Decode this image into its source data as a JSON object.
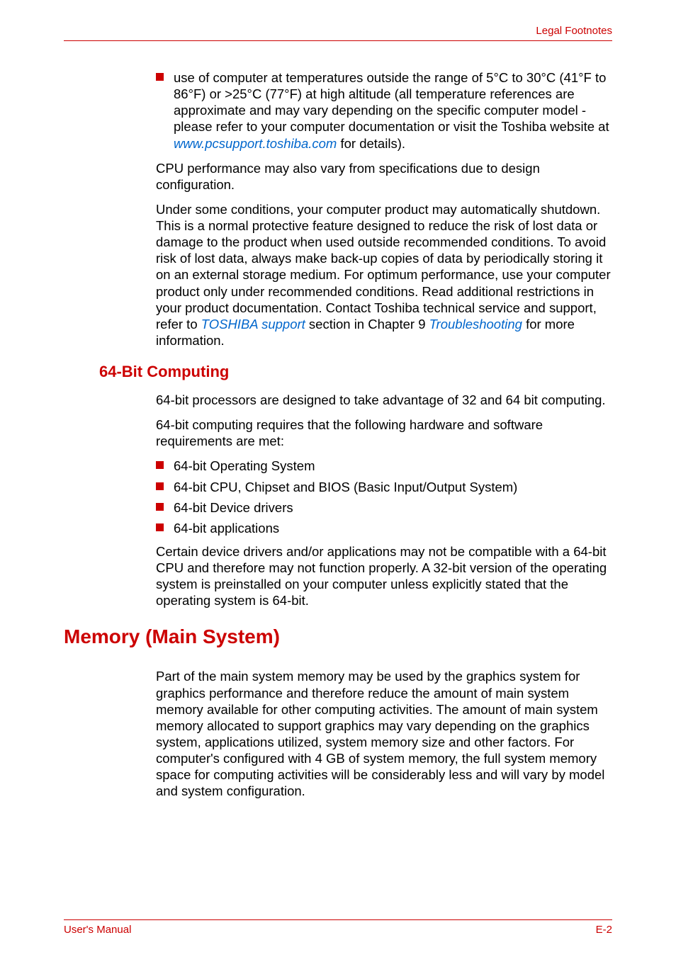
{
  "header": {
    "section_title": "Legal Footnotes"
  },
  "intro_bullet": {
    "text_before": "use of computer at temperatures outside the range of 5°C to 30°C (41°F to 86°F) or >25°C (77°F) at high altitude (all temperature references are approximate and may vary depending on the specific computer model - please refer to your computer documentation or visit the Toshiba website at ",
    "link1": "www.pcsupport.toshiba.com",
    "text_after": " for details)."
  },
  "para1": "CPU performance may also vary from specifications due to design configuration.",
  "para2": {
    "t1": "Under some conditions, your computer product may automatically shutdown. This is a normal protective feature designed to reduce the risk of lost data or damage to the product when used outside recommended conditions. To avoid risk of lost data, always make back-up copies of data by periodically storing it on an external storage medium. For optimum performance, use your computer product only under recommended conditions. Read additional restrictions in your product documentation. Contact Toshiba technical service and support, refer to ",
    "link1": "TOSHIBA support",
    "t2": " section in Chapter 9 ",
    "link2": "Troubleshooting",
    "t3": " for more information."
  },
  "h3_64bit": "64-Bit Computing",
  "s64": {
    "p1": "64-bit processors are designed to take advantage of 32 and 64 bit computing.",
    "p2": "64-bit computing requires that the following hardware and software requirements are met:",
    "bullets": {
      "b1": "64-bit Operating System",
      "b2": "64-bit CPU, Chipset and BIOS (Basic Input/Output System)",
      "b3": "64-bit Device drivers",
      "b4": "64-bit applications"
    },
    "p3": "Certain device drivers and/or applications may not be compatible with a 64-bit CPU and therefore may not function properly. A 32-bit version of the operating system is preinstalled on your computer unless explicitly stated that the operating system is 64-bit."
  },
  "h2_memory": "Memory (Main System)",
  "memory_para": "Part of the main system memory may be used by the graphics system for graphics performance and therefore reduce the amount of main system memory available for other computing activities. The amount of main system memory allocated to support graphics may vary depending on the graphics system, applications utilized, system memory size and other factors. For computer's configured with 4 GB of system memory, the full system memory space for computing activities will be considerably less and will vary by model and system configuration.",
  "footer": {
    "left": "User's Manual",
    "right": "E-2"
  },
  "colors": {
    "accent": "#cc0000",
    "link": "#0066cc",
    "text": "#000000",
    "bg": "#ffffff"
  }
}
